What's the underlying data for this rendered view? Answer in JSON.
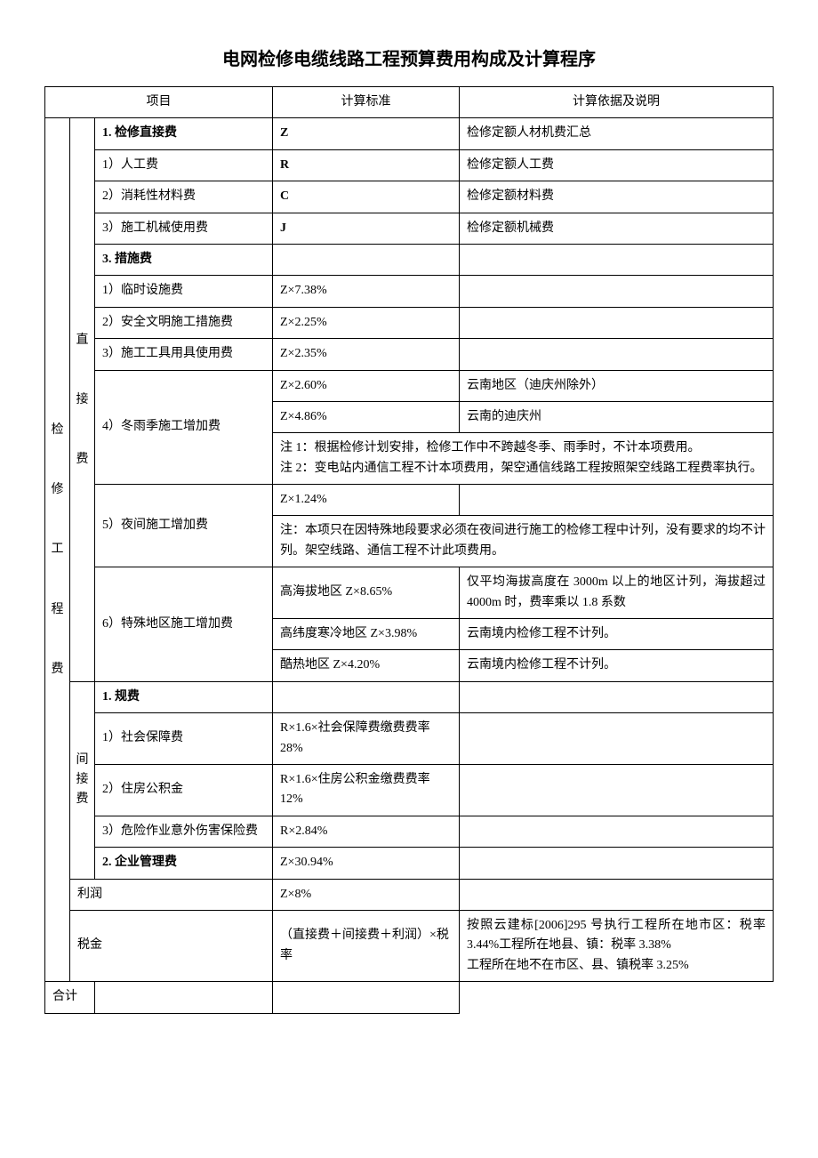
{
  "title": "电网检修电缆线路工程预算费用构成及计算程序",
  "header": {
    "project": "项目",
    "standard": "计算标准",
    "basis": "计算依据及说明"
  },
  "cat_main": "检\n\n修\n\n工\n\n程\n\n费",
  "cat_direct": "直\n\n接\n\n费",
  "cat_indirect": "间\n接\n费",
  "rows": {
    "r1": {
      "item": "1.  检修直接费",
      "std": "Z",
      "basis": "检修定额人材机费汇总"
    },
    "r2": {
      "item": "1）人工费",
      "std": "R",
      "basis": "检修定额人工费"
    },
    "r3": {
      "item": "2）消耗性材料费",
      "std": "C",
      "basis": "检修定额材料费"
    },
    "r4": {
      "item": "3）施工机械使用费",
      "std": "J",
      "basis": "检修定额机械费"
    },
    "r5": {
      "item": "3.  措施费",
      "std": "",
      "basis": ""
    },
    "r6": {
      "item": "1）临时设施费",
      "std": "Z×7.38%",
      "basis": ""
    },
    "r7": {
      "item": "2）安全文明施工措施费",
      "std": "Z×2.25%",
      "basis": ""
    },
    "r8": {
      "item": "3）施工工具用具使用费",
      "std": "Z×2.35%",
      "basis": ""
    },
    "r9a": {
      "std": "Z×2.60%",
      "basis": "云南地区（迪庆州除外）"
    },
    "r9b": {
      "std": "Z×4.86%",
      "basis": "云南的迪庆州"
    },
    "r9": {
      "item": "4）冬雨季施工增加费",
      "note": "注 1：根据检修计划安排，检修工作中不跨越冬季、雨季时，不计本项费用。\n注 2：变电站内通信工程不计本项费用，架空通信线路工程按照架空线路工程费率执行。"
    },
    "r10a": {
      "std": "Z×1.24%",
      "basis": ""
    },
    "r10": {
      "item": "5）夜间施工增加费",
      "note": "注：本项只在因特殊地段要求必须在夜间进行施工的检修工程中计列，没有要求的均不计列。架空线路、通信工程不计此项费用。"
    },
    "r11": {
      "item": "6）特殊地区施工增加费"
    },
    "r11a": {
      "std": "高海拔地区 Z×8.65%",
      "basis": "仅平均海拔高度在 3000m 以上的地区计列，海拔超过 4000m 时，费率乘以 1.8 系数"
    },
    "r11b": {
      "std": "高纬度寒冷地区 Z×3.98%",
      "basis": "云南境内检修工程不计列。"
    },
    "r11c": {
      "std": "酷热地区 Z×4.20%",
      "basis": "云南境内检修工程不计列。"
    },
    "r12": {
      "item": "1.  规费",
      "std": "",
      "basis": ""
    },
    "r13": {
      "item": "1）社会保障费",
      "std": "R×1.6×社会保障费缴费费率 28%",
      "basis": ""
    },
    "r14": {
      "item": "2）住房公积金",
      "std": "R×1.6×住房公积金缴费费率 12%",
      "basis": ""
    },
    "r15": {
      "item": "3）危险作业意外伤害保险费",
      "std": "R×2.84%",
      "basis": ""
    },
    "r16": {
      "item": "2.  企业管理费",
      "std": "Z×30.94%",
      "basis": ""
    },
    "r17": {
      "item": "利润",
      "std": "Z×8%",
      "basis": ""
    },
    "r18": {
      "item": "税金",
      "std": "（直接费＋间接费＋利润）×税率",
      "basis": "按照云建标[2006]295 号执行工程所在地市区：税率 3.44%工程所在地县、镇：税率 3.38%\n工程所在地不在市区、县、镇税率 3.25%"
    },
    "r19": {
      "item": "合计",
      "std": "",
      "basis": ""
    }
  }
}
